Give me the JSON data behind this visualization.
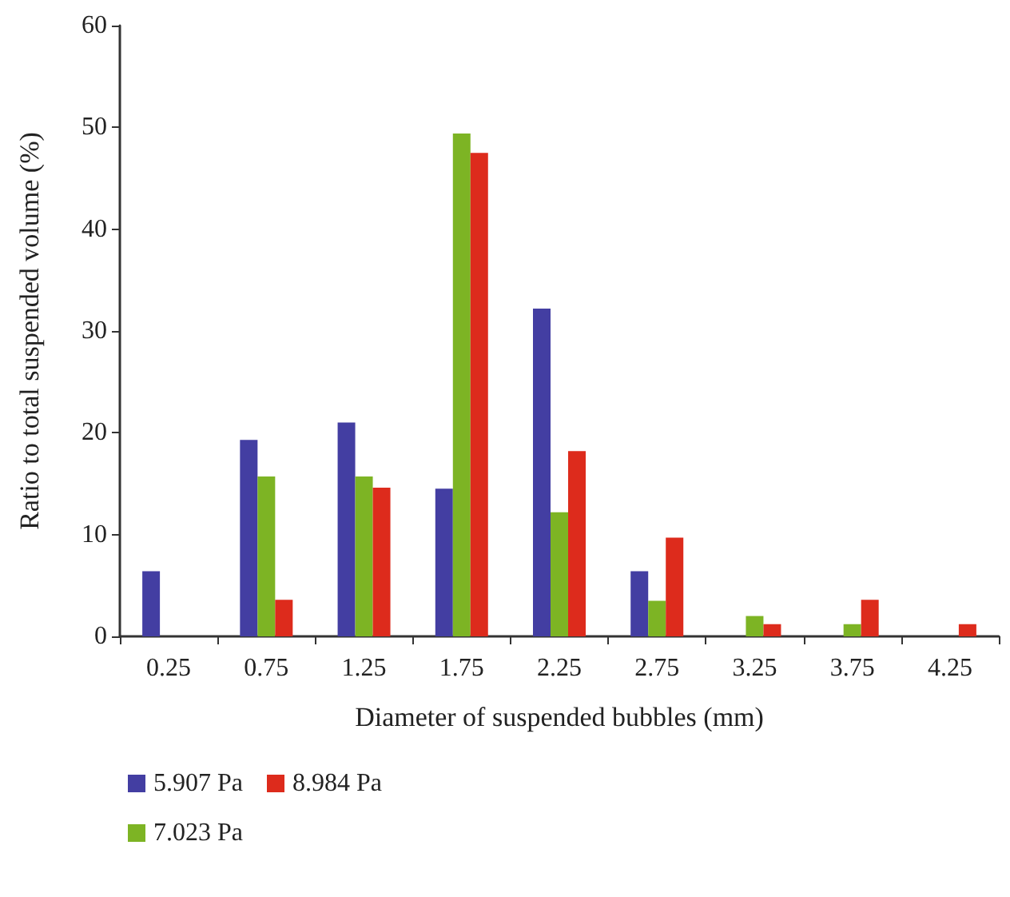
{
  "chart_data": {
    "type": "bar",
    "xlabel": "Diameter of suspended bubbles (mm)",
    "ylabel": "Ratio to total suspended volume (%)",
    "categories": [
      "0.25",
      "0.75",
      "1.25",
      "1.75",
      "2.25",
      "2.75",
      "3.25",
      "3.75",
      "4.25"
    ],
    "series": [
      {
        "name": "5.907 Pa",
        "color": "#433ea2",
        "values": [
          6.4,
          19.3,
          21.0,
          14.5,
          32.2,
          6.4,
          null,
          null,
          null
        ]
      },
      {
        "name": "7.023 Pa",
        "color": "#7db424",
        "values": [
          null,
          15.7,
          15.7,
          49.4,
          12.2,
          3.5,
          2.0,
          1.2,
          null
        ]
      },
      {
        "name": "8.984 Pa",
        "color": "#dd2b1c",
        "values": [
          null,
          3.6,
          14.6,
          47.5,
          18.2,
          9.7,
          1.2,
          3.6,
          1.2
        ]
      }
    ],
    "ylim": [
      0,
      60
    ],
    "yticks": [
      0,
      10,
      20,
      30,
      40,
      50,
      60
    ],
    "grid": false,
    "legend": "bottom left"
  }
}
